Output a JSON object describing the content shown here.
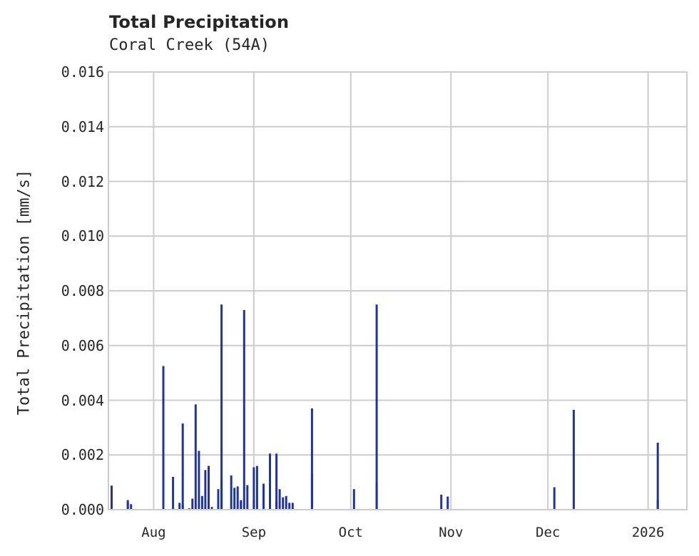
{
  "header": {
    "title": "Total Precipitation",
    "subtitle": "Coral Creek (54A)"
  },
  "axes": {
    "ylabel": "Total Precipitation [mm/s]",
    "yticks": [
      "0.000",
      "0.002",
      "0.004",
      "0.006",
      "0.008",
      "0.010",
      "0.012",
      "0.014",
      "0.016"
    ],
    "xticks": [
      "Aug",
      "Sep",
      "Oct",
      "Nov",
      "Dec",
      "2026"
    ]
  },
  "colors": {
    "bar": "#233592",
    "grid": "#cccccc",
    "text": "#262626"
  },
  "chart_data": {
    "type": "bar",
    "title": "Total Precipitation",
    "subtitle": "Coral Creek (54A)",
    "xlabel": "",
    "ylabel": "Total Precipitation [mm/s]",
    "ylim": [
      0,
      0.016
    ],
    "xlim": [
      "2025-07-18",
      "2026-01-13"
    ],
    "grid": true,
    "legend": null,
    "x_tick_labels": [
      "Aug",
      "Sep",
      "Oct",
      "Nov",
      "Dec",
      "2026"
    ],
    "y_tick_labels": [
      "0.000",
      "0.002",
      "0.004",
      "0.006",
      "0.008",
      "0.010",
      "0.012",
      "0.014",
      "0.016"
    ],
    "x": [
      "2025-07-19",
      "2025-07-23",
      "2025-07-24",
      "2025-07-24",
      "2025-07-25",
      "2025-08-04",
      "2025-08-07",
      "2025-08-09",
      "2025-08-10",
      "2025-08-10",
      "2025-08-12",
      "2025-08-13",
      "2025-08-14",
      "2025-08-15",
      "2025-08-16",
      "2025-08-17",
      "2025-08-18",
      "2025-08-19",
      "2025-08-21",
      "2025-08-22",
      "2025-08-22",
      "2025-08-25",
      "2025-08-26",
      "2025-08-27",
      "2025-08-28",
      "2025-08-28",
      "2025-08-29",
      "2025-08-30",
      "2025-09-01",
      "2025-09-01",
      "2025-09-02",
      "2025-09-04",
      "2025-09-06",
      "2025-09-06",
      "2025-09-08",
      "2025-09-08",
      "2025-09-09",
      "2025-09-10",
      "2025-09-11",
      "2025-09-12",
      "2025-09-13",
      "2025-09-19",
      "2025-09-19",
      "2025-10-02",
      "2025-10-09",
      "2025-10-09",
      "2025-10-29",
      "2025-10-31",
      "2025-12-03",
      "2025-12-09",
      "2026-01-04",
      "2026-01-04"
    ],
    "values": [
      0.00088,
      2e-05,
      0.00035,
      0.00025,
      0.0002,
      0.00525,
      0.0012,
      0.00025,
      0.00315,
      0.0002,
      5e-05,
      0.0004,
      0.00385,
      0.00215,
      0.0005,
      0.00145,
      0.0016,
      0.0001,
      0.00075,
      0.0075,
      0.0011,
      0.00125,
      0.0008,
      0.00085,
      0.0003,
      0.00035,
      0.0073,
      0.0009,
      0.00155,
      0.00035,
      0.0016,
      0.00095,
      0.00205,
      0.0001,
      0.00205,
      0.0003,
      0.00075,
      0.00045,
      0.0005,
      0.00025,
      0.00025,
      0.0037,
      0.0013,
      0.00075,
      0.0075,
      0.001,
      0.00055,
      0.00048,
      0.00082,
      0.00365,
      0.00245,
      0.00035
    ]
  }
}
